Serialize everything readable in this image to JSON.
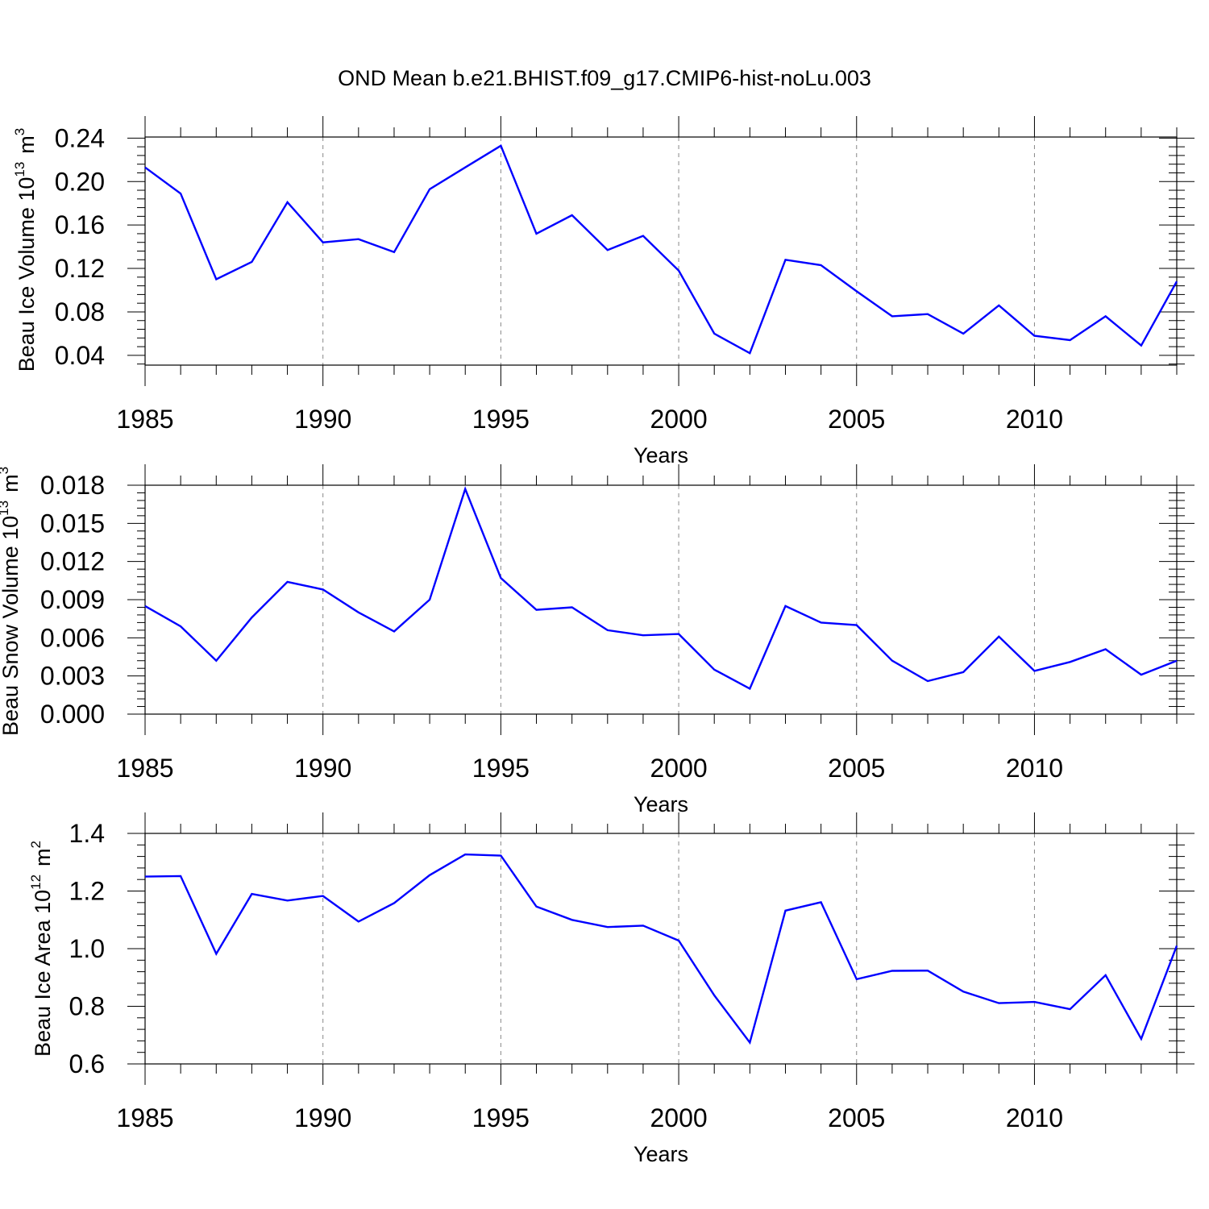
{
  "figure": {
    "title": "OND Mean b.e21.BHIST.f09_g17.CMIP6-hist-noLu.003"
  },
  "chart_data": [
    {
      "type": "line",
      "title": "OND Mean b.e21.BHIST.f09_g17.CMIP6-hist-noLu.003",
      "ylabel": "Beau Ice Volume",
      "ylabel_unit": "10",
      "ylabel_exp": "13",
      "ylabel_m": "m",
      "ylabel_m_exp": "3",
      "xlabel": "Years",
      "xlim": [
        1985,
        2014
      ],
      "ylim": [
        0.031,
        0.241
      ],
      "x_ticks": [
        "1985",
        "1990",
        "1995",
        "2000",
        "2005",
        "2010"
      ],
      "y_ticks": [
        "0.04",
        "0.08",
        "0.12",
        "0.16",
        "0.20",
        "0.24"
      ],
      "grid": "vertical dashed at major x ticks",
      "series": [
        {
          "name": "Beau Ice Volume",
          "color": "#0000ff",
          "x": [
            1985,
            1986,
            1987,
            1988,
            1989,
            1990,
            1991,
            1992,
            1993,
            1994,
            1995,
            1996,
            1997,
            1998,
            1999,
            2000,
            2001,
            2002,
            2003,
            2004,
            2005,
            2006,
            2007,
            2008,
            2009,
            2010,
            2011,
            2012,
            2013,
            2014
          ],
          "values": [
            0.213,
            0.189,
            0.11,
            0.126,
            0.181,
            0.144,
            0.147,
            0.135,
            0.193,
            0.213,
            0.233,
            0.152,
            0.169,
            0.137,
            0.15,
            0.118,
            0.06,
            0.042,
            0.128,
            0.123,
            0.099,
            0.076,
            0.078,
            0.06,
            0.086,
            0.058,
            0.054,
            0.076,
            0.049,
            0.108
          ]
        }
      ]
    },
    {
      "type": "line",
      "ylabel": "Beau Snow Volume",
      "ylabel_unit": "10",
      "ylabel_exp": "13",
      "ylabel_m": "m",
      "ylabel_m_exp": "3",
      "xlabel": "Years",
      "xlim": [
        1985,
        2014
      ],
      "ylim": [
        0.0,
        0.018
      ],
      "x_ticks": [
        "1985",
        "1990",
        "1995",
        "2000",
        "2005",
        "2010"
      ],
      "y_ticks": [
        "0.000",
        "0.003",
        "0.006",
        "0.009",
        "0.012",
        "0.015",
        "0.018"
      ],
      "grid": "vertical dashed at major x ticks",
      "series": [
        {
          "name": "Beau Snow Volume",
          "color": "#0000ff",
          "x": [
            1985,
            1986,
            1987,
            1988,
            1989,
            1990,
            1991,
            1992,
            1993,
            1994,
            1995,
            1996,
            1997,
            1998,
            1999,
            2000,
            2001,
            2002,
            2003,
            2004,
            2005,
            2006,
            2007,
            2008,
            2009,
            2010,
            2011,
            2012,
            2013,
            2014
          ],
          "values": [
            0.0085,
            0.0069,
            0.0042,
            0.0076,
            0.0104,
            0.0098,
            0.008,
            0.0065,
            0.009,
            0.0177,
            0.0107,
            0.0082,
            0.0084,
            0.0066,
            0.0062,
            0.0063,
            0.0035,
            0.002,
            0.0085,
            0.0072,
            0.007,
            0.0042,
            0.0026,
            0.0033,
            0.0061,
            0.0034,
            0.0041,
            0.0051,
            0.0031,
            0.0042
          ]
        }
      ]
    },
    {
      "type": "line",
      "ylabel": "Beau Ice Area",
      "ylabel_unit": "10",
      "ylabel_exp": "12",
      "ylabel_m": "m",
      "ylabel_m_exp": "2",
      "xlabel": "Years",
      "xlim": [
        1985,
        2014
      ],
      "ylim": [
        0.6,
        1.4
      ],
      "x_ticks": [
        "1985",
        "1990",
        "1995",
        "2000",
        "2005",
        "2010"
      ],
      "y_ticks": [
        "0.6",
        "0.8",
        "1.0",
        "1.2",
        "1.4"
      ],
      "grid": "vertical dashed at major x ticks",
      "series": [
        {
          "name": "Beau Ice Area",
          "color": "#0000ff",
          "x": [
            1985,
            1986,
            1987,
            1988,
            1989,
            1990,
            1991,
            1992,
            1993,
            1994,
            1995,
            1996,
            1997,
            1998,
            1999,
            2000,
            2001,
            2002,
            2003,
            2004,
            2005,
            2006,
            2007,
            2008,
            2009,
            2010,
            2011,
            2012,
            2013,
            2014
          ],
          "values": [
            1.25,
            1.252,
            0.982,
            1.19,
            1.167,
            1.183,
            1.094,
            1.158,
            1.255,
            1.327,
            1.323,
            1.146,
            1.1,
            1.075,
            1.08,
            1.028,
            0.838,
            0.674,
            1.132,
            1.161,
            0.894,
            0.923,
            0.924,
            0.851,
            0.811,
            0.815,
            0.79,
            0.908,
            0.687,
            1.01
          ]
        }
      ]
    }
  ]
}
